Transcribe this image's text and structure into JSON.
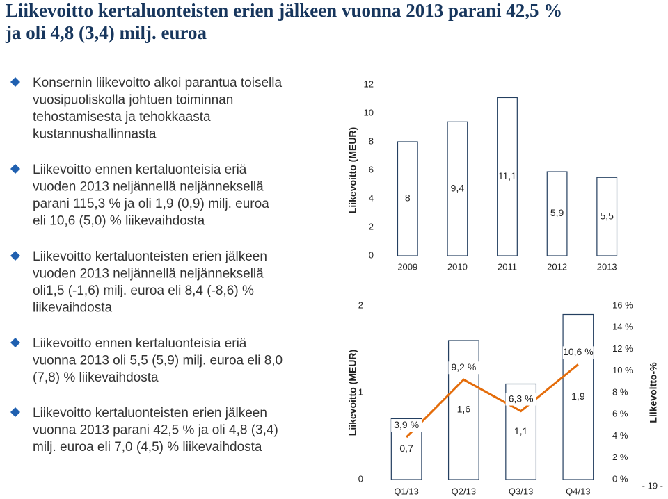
{
  "title": [
    "Liikevoitto kertaluonteisten erien jälkeen vuonna 2013 parani 42,5 %",
    "ja oli 4,8 (3,4) milj. euroa"
  ],
  "bullets": [
    [
      "Konsernin liikevoitto alkoi parantua toisella",
      "vuosipuoliskolla johtuen toiminnan",
      "tehostamisesta ja tehokkaasta",
      "kustannushallinnasta"
    ],
    [
      "Liikevoitto ennen kertaluonteisia eriä",
      "vuoden 2013 neljännellä neljänneksellä",
      "parani 115,3 % ja oli 1,9 (0,9) milj. euroa",
      "eli 10,6 (5,0) % liikevaihdosta"
    ],
    [
      "Liikevoitto kertaluonteisten erien jälkeen",
      "vuoden 2013 neljännellä neljänneksellä",
      "oli1,5 (-1,6) milj. euroa eli 8,4 (-8,6) %",
      "liikevaihdosta"
    ],
    [
      "Liikevoitto ennen kertaluonteisia eriä",
      "vuonna 2013 oli 5,5 (5,9) milj. euroa eli 8,0",
      "(7,8) % liikevaihdosta"
    ],
    [
      "Liikevoitto kertaluonteisten erien jälkeen",
      "vuonna 2013 parani 42,5 % ja oli 4,8 (3,4)",
      "milj. euroa eli 7,0 (4,5) % liikevaihdosta"
    ]
  ],
  "page_number": "- 19 -",
  "chart_data": [
    {
      "type": "bar",
      "y_label": "Liikevoitto  (MEUR)",
      "categories": [
        "2009",
        "2010",
        "2011",
        "2012",
        "2013"
      ],
      "series": [
        {
          "color": "#243f60",
          "values": [
            8,
            9.4,
            11.1,
            5.9,
            5.5
          ],
          "value_labels": [
            "8",
            "9,4",
            "11,1",
            "5,9",
            "5,5"
          ]
        }
      ],
      "ylim": [
        0,
        12
      ],
      "yticks": [
        0,
        2,
        4,
        6,
        8,
        10,
        12
      ]
    },
    {
      "type": "bar",
      "y_label": "Liikevoitto (MEUR)",
      "y2_label": "Liikevoitto-%",
      "categories": [
        "Q1/13",
        "Q2/13",
        "Q3/13",
        "Q4/13"
      ],
      "series": [
        {
          "color": "#243f60",
          "values": [
            0.7,
            1.6,
            1.1,
            1.9
          ],
          "value_labels": [
            "0,7",
            "1,6",
            "1,1",
            "1,9"
          ]
        },
        {
          "type": "line",
          "axis": "y2",
          "color": "#e46c0a",
          "values": [
            3.9,
            9.2,
            6.3,
            10.6
          ],
          "value_labels": [
            "3,9 %",
            "9,2 %",
            "6,3 %",
            "10,6 %"
          ]
        }
      ],
      "ylim": [
        0,
        2
      ],
      "yticks": [
        0,
        1,
        2
      ],
      "y2lim": [
        0,
        16
      ],
      "y2ticks": [
        {
          "value": 0,
          "label": "0 %"
        },
        {
          "value": 2,
          "label": "2 %"
        },
        {
          "value": 4,
          "label": "4 %"
        },
        {
          "value": 6,
          "label": "6 %"
        },
        {
          "value": 8,
          "label": "8 %"
        },
        {
          "value": 10,
          "label": "10 %"
        },
        {
          "value": 12,
          "label": "12 %"
        },
        {
          "value": 14,
          "label": "14 %"
        },
        {
          "value": 16,
          "label": "16 %"
        }
      ]
    }
  ]
}
